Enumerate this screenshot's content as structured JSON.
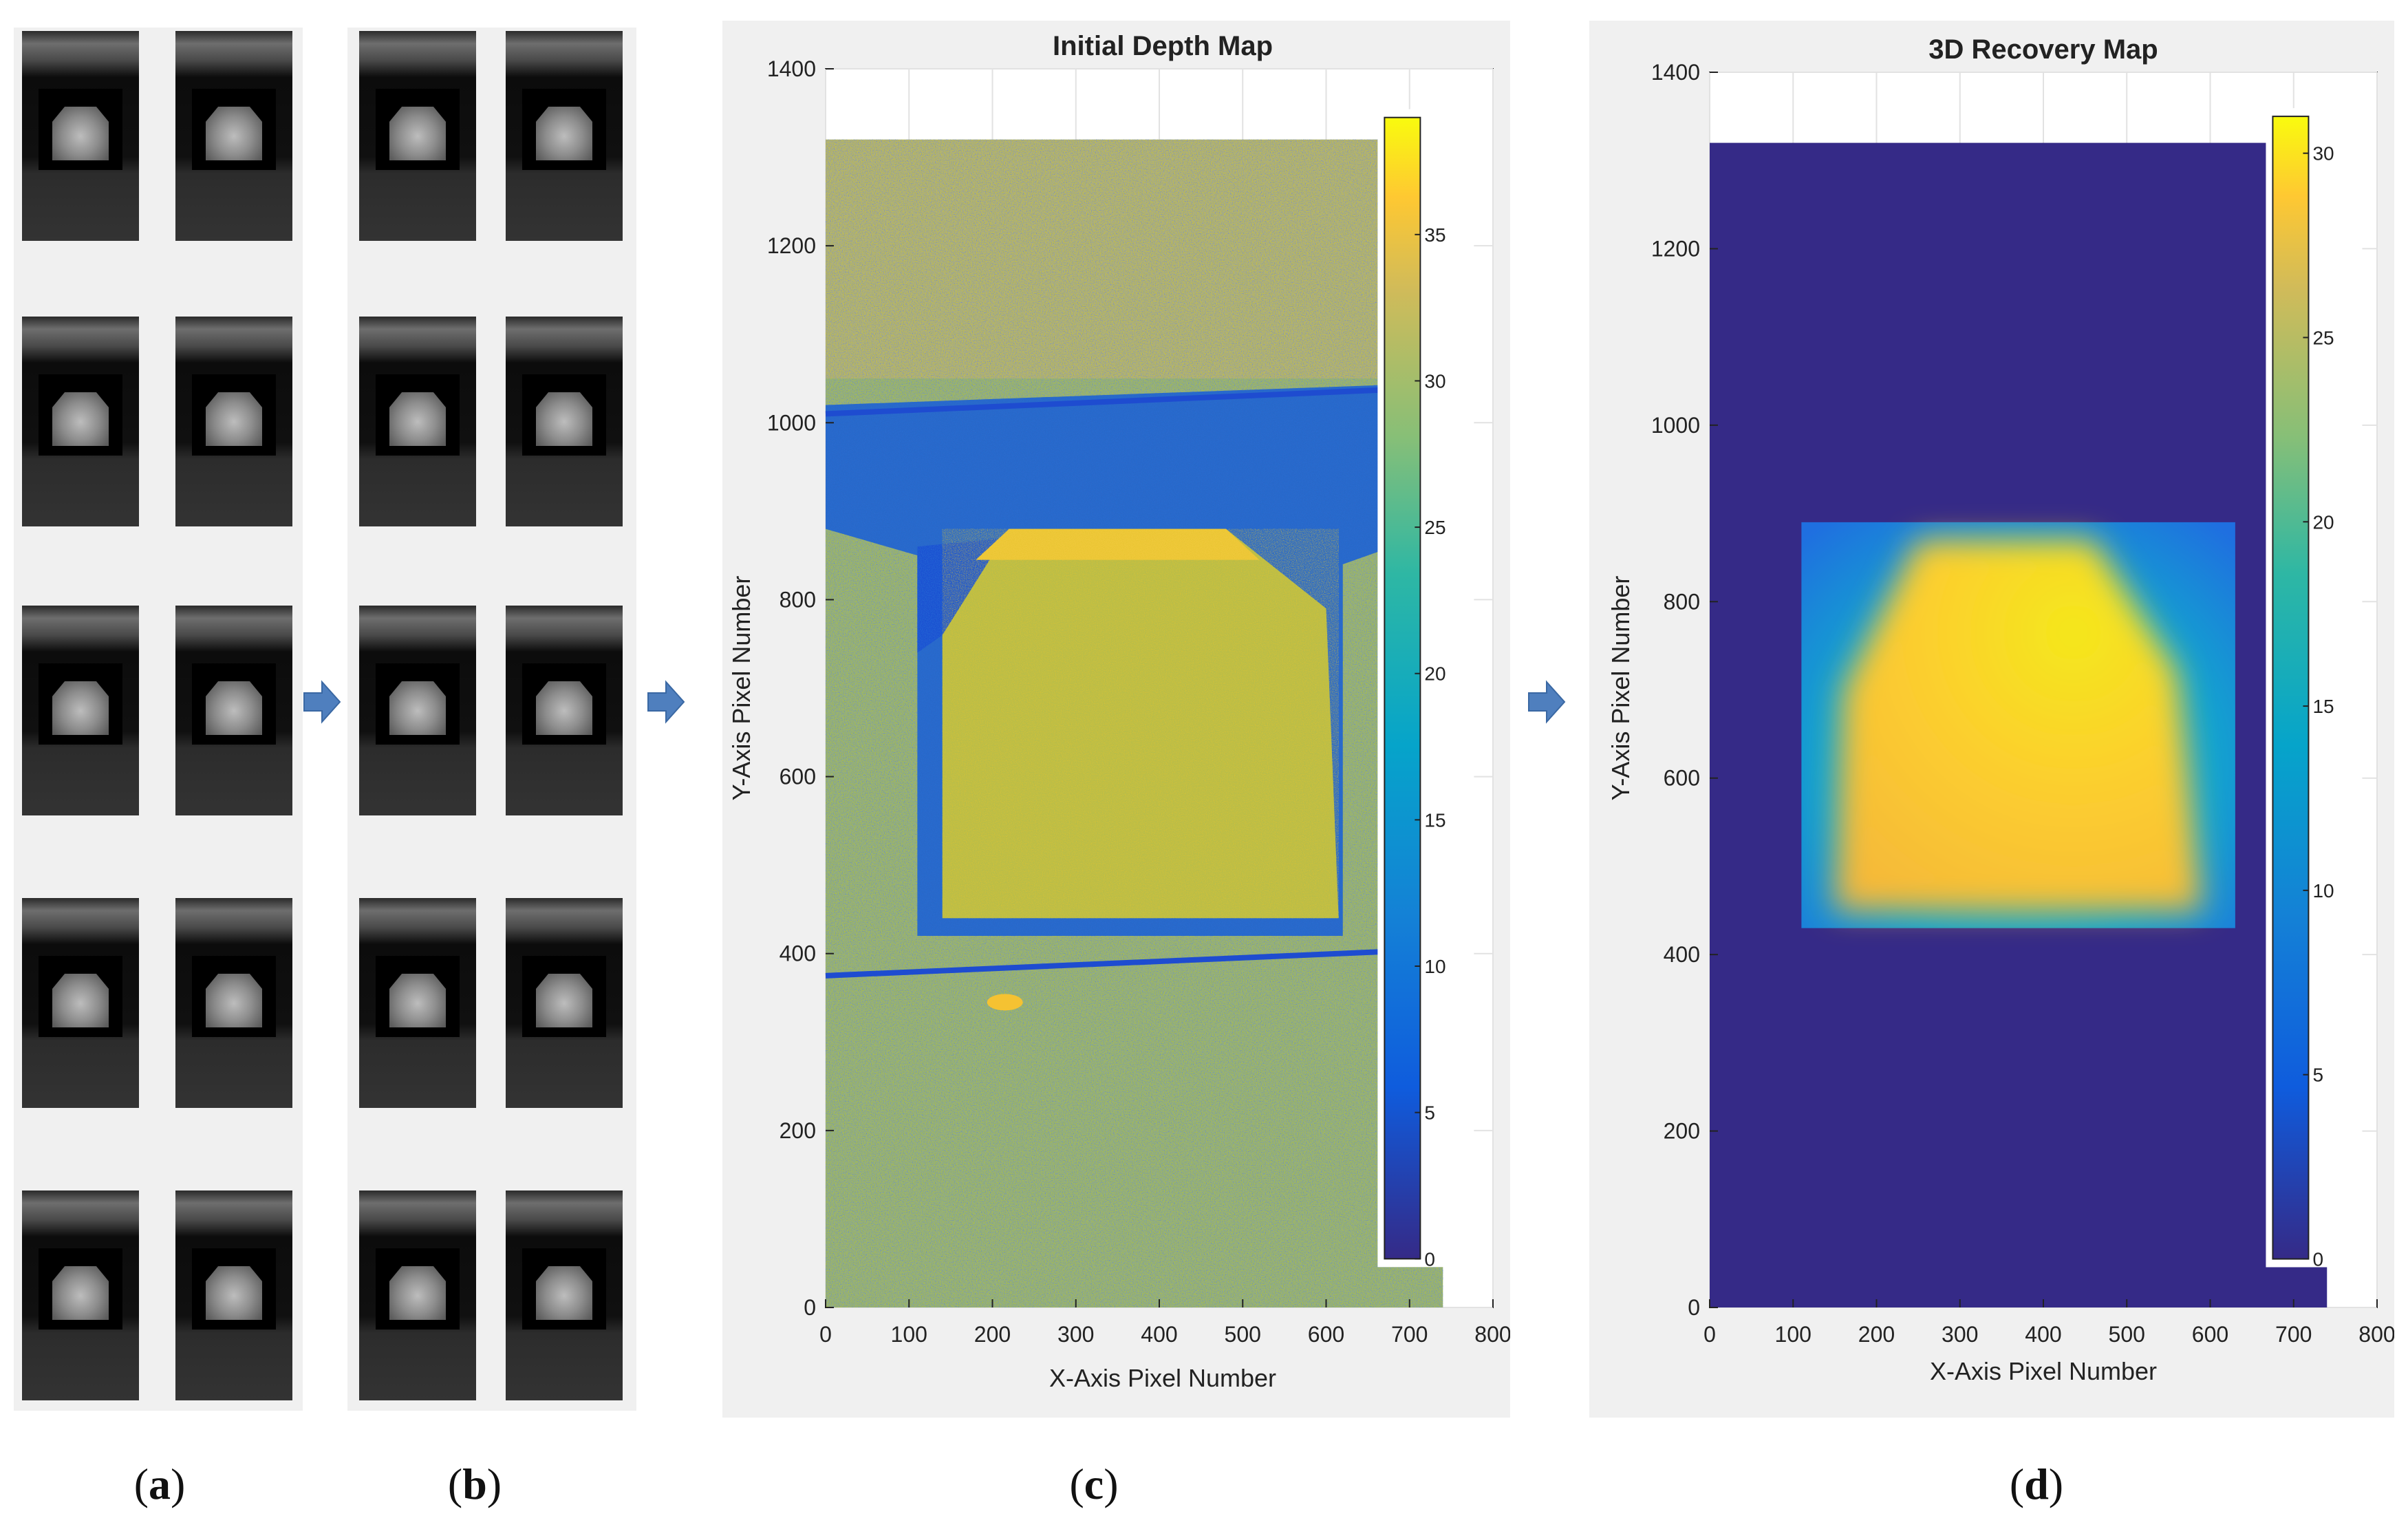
{
  "labels": {
    "a": "a",
    "b": "b",
    "c": "c",
    "d": "d"
  },
  "chart_data": [
    {
      "type": "heatmap",
      "title": "Initial Depth Map",
      "xlabel": "X-Axis Pixel Number",
      "ylabel": "Y-Axis Pixel Number",
      "xlim": [
        0,
        800
      ],
      "ylim": [
        0,
        1400
      ],
      "xticks": [
        "0",
        "100",
        "200",
        "300",
        "400",
        "500",
        "600",
        "700",
        "800"
      ],
      "yticks": [
        "0",
        "200",
        "400",
        "600",
        "800",
        "1000",
        "1200",
        "1400"
      ],
      "image_extent": {
        "x": [
          0,
          740
        ],
        "y": [
          0,
          1320
        ]
      },
      "colorbar": {
        "range": [
          0,
          39
        ],
        "ticks": [
          "0",
          "5",
          "10",
          "15",
          "20",
          "25",
          "30",
          "35"
        ]
      },
      "regions": [
        {
          "name": "background",
          "value_range": [
            15,
            37
          ],
          "pattern": "noisy"
        },
        {
          "name": "upper-dark-band",
          "y": [
            880,
            1030
          ],
          "value": 8
        },
        {
          "name": "object-top-face",
          "x": [
            220,
            490
          ],
          "y": [
            790,
            870
          ],
          "value": 32
        },
        {
          "name": "object-body",
          "x": [
            140,
            620
          ],
          "y": [
            430,
            790
          ],
          "value": 27
        }
      ]
    },
    {
      "type": "heatmap",
      "title": "3D Recovery Map",
      "xlabel": "X-Axis Pixel Number",
      "ylabel": "Y-Axis Pixel Number",
      "xlim": [
        0,
        800
      ],
      "ylim": [
        0,
        1400
      ],
      "xticks": [
        "0",
        "100",
        "200",
        "300",
        "400",
        "500",
        "600",
        "700",
        "800"
      ],
      "yticks": [
        "0",
        "200",
        "400",
        "600",
        "800",
        "1000",
        "1200",
        "1400"
      ],
      "image_extent": {
        "x": [
          0,
          740
        ],
        "y": [
          0,
          1320
        ]
      },
      "colorbar": {
        "range": [
          0,
          31
        ],
        "ticks": [
          "0",
          "5",
          "10",
          "15",
          "20",
          "25",
          "30"
        ]
      },
      "regions": [
        {
          "name": "background",
          "value": 0
        },
        {
          "name": "recovered-window",
          "x": [
            110,
            630
          ],
          "y": [
            430,
            890
          ],
          "value": 12
        },
        {
          "name": "recovered-object",
          "x": [
            140,
            600
          ],
          "y": [
            440,
            870
          ],
          "value": 27
        }
      ]
    }
  ]
}
